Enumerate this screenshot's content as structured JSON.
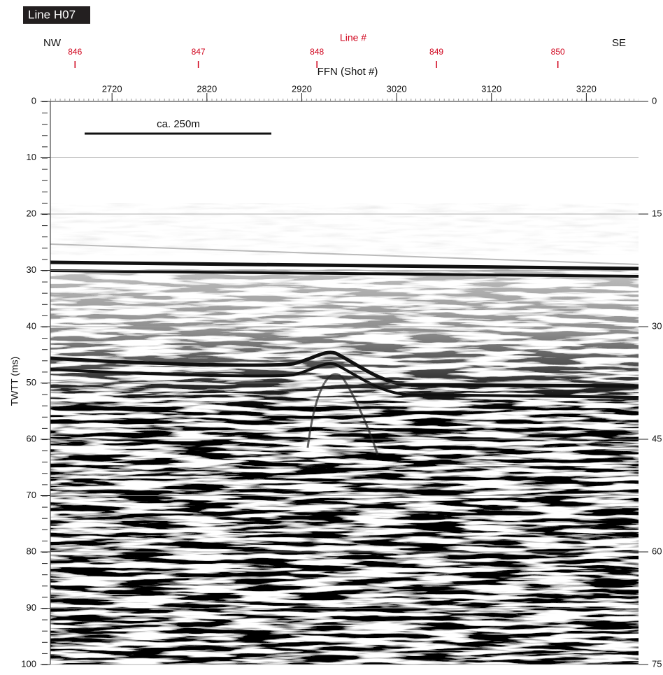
{
  "chart_data": {
    "type": "seismic",
    "title": "Line H07",
    "left_direction": "NW",
    "right_direction": "SE",
    "line_axis_label": "Line #",
    "line_markers": [
      {
        "label": 846,
        "x": 2681
      },
      {
        "label": 847,
        "x": 2811
      },
      {
        "label": 848,
        "x": 2936
      },
      {
        "label": 849,
        "x": 3062
      },
      {
        "label": 850,
        "x": 3190
      }
    ],
    "xlabel": "FFN (Shot #)",
    "xlim": [
      2655,
      3275
    ],
    "xticks": [
      2720,
      2820,
      2920,
      3020,
      3120,
      3220
    ],
    "ylabel": "TWTT (ms)",
    "ylim": [
      0,
      100
    ],
    "yticks": [
      0,
      10,
      20,
      30,
      40,
      50,
      60,
      70,
      80,
      90,
      100
    ],
    "y2lim": [
      0,
      75
    ],
    "y2ticks": [
      0,
      15,
      30,
      45,
      60,
      75
    ],
    "scale_bar_label": "ca. 250m",
    "grid": true,
    "marker_color": "#d0021b"
  }
}
